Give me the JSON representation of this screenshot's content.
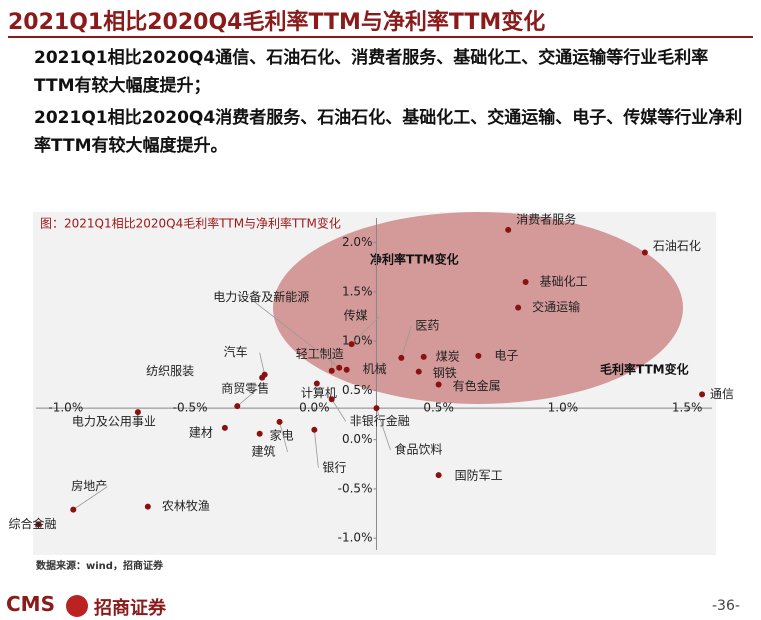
{
  "header": {
    "title": "2021Q1相比2020Q4毛利率TTM与净利率TTM变化"
  },
  "paragraphs": [
    "2021Q1相比2020Q4通信、石油石化、消费者服务、基础化工、交通运输等行业毛利率TTM有较大幅度提升；",
    "2021Q1相比2020Q4消费者服务、石油石化、基础化工、交通运输、电子、传媒等行业净利率TTM有较大幅度提升。"
  ],
  "chart_data": {
    "type": "scatter",
    "title": "图：2021Q1相比2020Q4毛利率TTM与净利率TTM变化",
    "x_label": "毛利率TTM变化",
    "y_label": "净利率TTM变化",
    "labels": [
      "消费者服务",
      "石油石化",
      "基础化工",
      "交通运输",
      "医药",
      "煤炭",
      "电子",
      "钢铁",
      "机械",
      "有色金属",
      "轻工制造",
      "计算机",
      "传媒",
      "电力设备及新能源",
      "汽车",
      "纺织服装",
      "商贸零售",
      "电力及公用事业",
      "建材",
      "家电",
      "建筑",
      "非银行金融",
      "食品饮料",
      "银行",
      "国防军工",
      "房地产",
      "农林牧渔",
      "综合金融",
      "通信"
    ],
    "x": [
      0.78,
      1.33,
      0.85,
      0.82,
      0.35,
      0.44,
      0.66,
      0.42,
      0.13,
      0.5,
      0.07,
      0.01,
      0.15,
      0.1,
      -0.2,
      -0.21,
      -0.31,
      -0.71,
      -0.36,
      -0.22,
      -0.14,
      0.07,
      0.25,
      0.0,
      0.5,
      -0.97,
      -0.67,
      -1.11,
      1.56
    ],
    "values": [
      2.13,
      1.9,
      1.6,
      1.34,
      0.83,
      0.84,
      0.85,
      0.69,
      0.71,
      0.56,
      0.7,
      0.57,
      0.97,
      0.73,
      0.66,
      0.63,
      0.34,
      0.28,
      0.12,
      0.06,
      0.18,
      0.41,
      0.32,
      0.1,
      -0.36,
      -0.71,
      -0.68,
      -0.86,
      0.46
    ],
    "color": "#8b1010",
    "xlim": [
      -1.12,
      1.6
    ],
    "ylim": [
      -1.12,
      2.25
    ],
    "xticks": [
      {
        "value": -1.0,
        "label": "-1.0%"
      },
      {
        "value": -0.5,
        "label": "-0.5%"
      },
      {
        "value": 0.0,
        "label": "0.0%"
      },
      {
        "value": 0.5,
        "label": "0.5%"
      },
      {
        "value": 1.0,
        "label": "1.0%"
      },
      {
        "value": 1.5,
        "label": "1.5%"
      }
    ],
    "yticks": [
      {
        "value": -1.0,
        "label": "-1.0%"
      },
      {
        "value": -0.5,
        "label": "-0.5%"
      },
      {
        "value": 0.0,
        "label": "0.0%"
      },
      {
        "value": 0.5,
        "label": "0.5%"
      },
      {
        "value": 1.0,
        "label": "1.0%"
      },
      {
        "value": 1.5,
        "label": "1.5%"
      },
      {
        "value": 2.0,
        "label": "2.0%"
      }
    ],
    "x_axis_at": 0.32,
    "y_axis_at": 0.25
  },
  "source": "数据来源：wind，招商证券",
  "footer": {
    "logo": "CMS",
    "company": "招商证券",
    "page": "-36-"
  }
}
